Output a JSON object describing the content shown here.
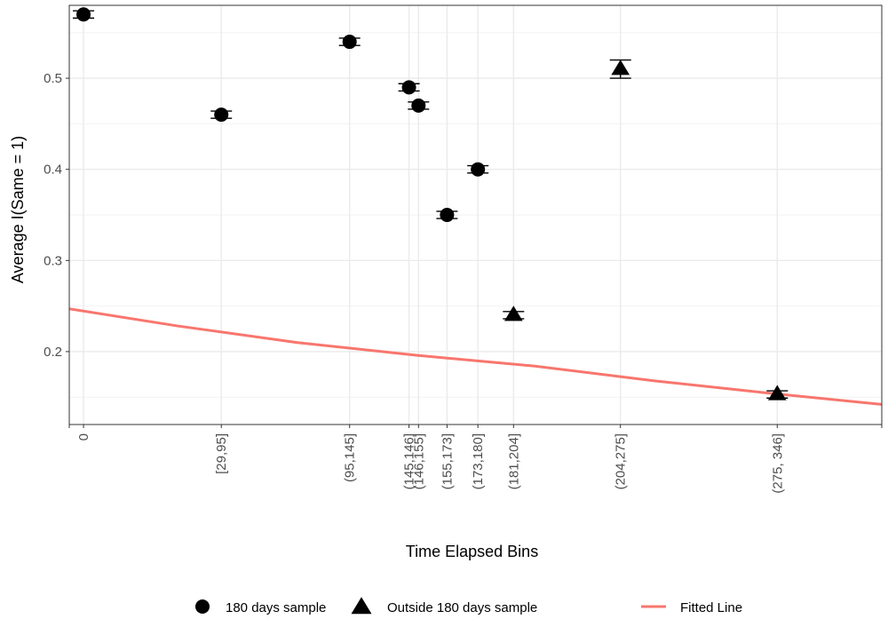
{
  "chart_data": {
    "type": "scatter",
    "xlabel": "Time Elapsed Bins",
    "ylabel": "Average I(Same = 1)",
    "x_range": [
      -6,
      336
    ],
    "y_range": [
      0.12,
      0.58
    ],
    "y_ticks": [
      0.2,
      0.3,
      0.4,
      0.5
    ],
    "y_tick_labels": [
      "0.2",
      "0.3",
      "0.4",
      "0.5"
    ],
    "grid": true,
    "legend_position": "bottom",
    "x_ticks": [
      {
        "label": "0",
        "x": 0
      },
      {
        "label": "[29,95]",
        "x": 58
      },
      {
        "label": "(95,145]",
        "x": 112
      },
      {
        "label": "(145,146]",
        "x": 137
      },
      {
        "label": "(146,155]",
        "x": 141
      },
      {
        "label": "(155,173]",
        "x": 153
      },
      {
        "label": "(173,180]",
        "x": 166
      },
      {
        "label": "(181,204]",
        "x": 181
      },
      {
        "label": "(204,275]",
        "x": 226
      },
      {
        "label": "(275, 346]",
        "x": 292
      }
    ],
    "series": [
      {
        "name": "180 days sample",
        "marker": "circle",
        "color": "#000000",
        "points": [
          {
            "x": 0,
            "y": 0.57,
            "err": 0.004
          },
          {
            "x": 58,
            "y": 0.46,
            "err": 0.004
          },
          {
            "x": 112,
            "y": 0.54,
            "err": 0.004
          },
          {
            "x": 137,
            "y": 0.49,
            "err": 0.004
          },
          {
            "x": 141,
            "y": 0.47,
            "err": 0.004
          },
          {
            "x": 153,
            "y": 0.35,
            "err": 0.004
          },
          {
            "x": 166,
            "y": 0.4,
            "err": 0.004
          }
        ]
      },
      {
        "name": "Outside 180 days sample",
        "marker": "triangle",
        "color": "#000000",
        "points": [
          {
            "x": 181,
            "y": 0.24,
            "err": 0.004
          },
          {
            "x": 226,
            "y": 0.51,
            "err": 0.01
          },
          {
            "x": 292,
            "y": 0.153,
            "err": 0.004
          }
        ]
      },
      {
        "name": "Fitted Line",
        "type": "line",
        "color": "#F8766D",
        "x": [
          -6,
          40,
          90,
          140,
          190,
          240,
          290,
          336
        ],
        "y": [
          0.247,
          0.228,
          0.21,
          0.196,
          0.184,
          0.168,
          0.154,
          0.142
        ]
      }
    ]
  }
}
